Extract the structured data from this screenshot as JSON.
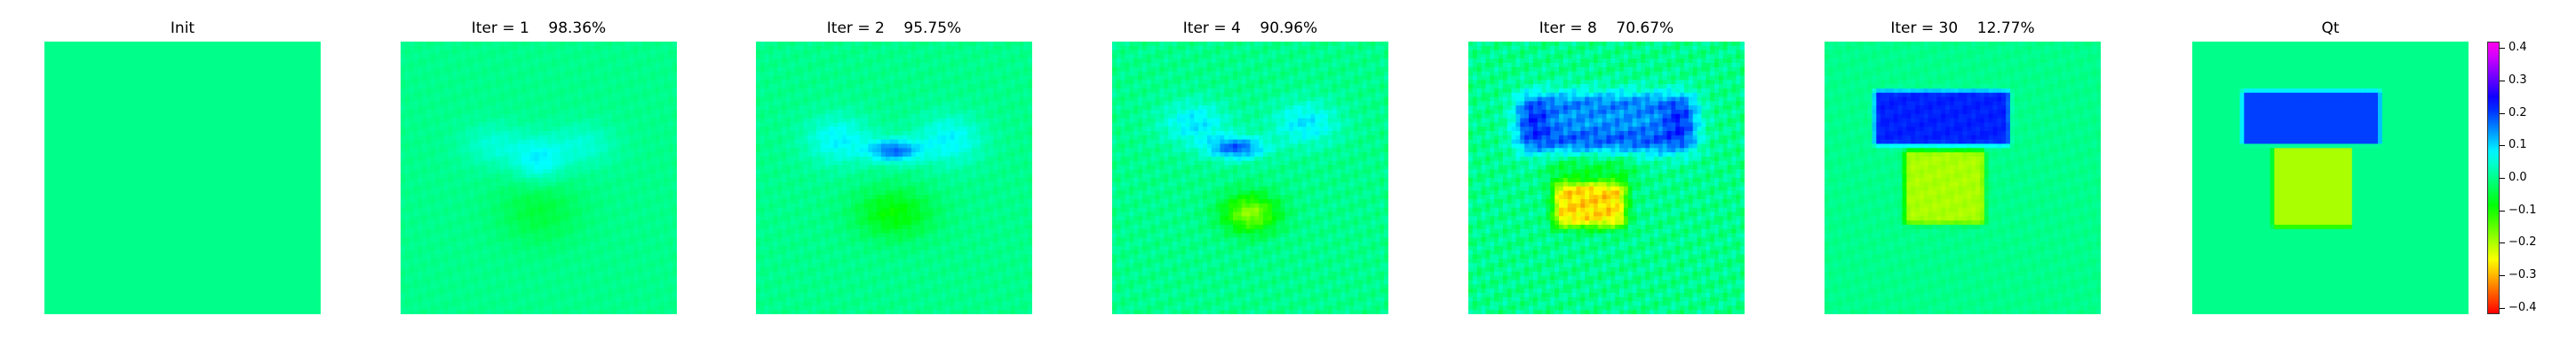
{
  "chart_data": {
    "type": "heatmap",
    "colormap": "gist_rainbow_r (red = -0.4, yellow ≈ -0.25, green ≈ -0.05, cyan = 0.1, blue = 0.2, magenta = 0.4)",
    "value_range": [
      -0.42,
      0.42
    ],
    "background_value": 0.0,
    "panels": [
      {
        "id": "init",
        "title": "Init",
        "description": "uniform field at 0.0"
      },
      {
        "id": "iter1",
        "title": "Iter = 1    98.36%",
        "description": "faint cyan V-shaped lobe in upper center (~0.07), faint green below"
      },
      {
        "id": "iter2",
        "title": "Iter = 2    95.75%",
        "description": "cyan wing lobes, blue spot (~0.2) upper center, green blob (~-0.08) below"
      },
      {
        "id": "iter4",
        "title": "Iter = 4    90.96%",
        "description": "blue band (~0.2) at ~0.38 height, yellow-green blob (~-0.18) below"
      },
      {
        "id": "iter8",
        "title": "Iter = 8    70.67%",
        "description": "blue ring around upper block, orange-yellow (~-0.28) lower block"
      },
      {
        "id": "iter30",
        "title": "Iter = 30    12.77%",
        "description": "near-uniform blue (~0.22) upper rectangle, yellow-green (~-0.2) lower rectangle"
      },
      {
        "id": "qt",
        "title": "Qt",
        "description": "ground truth: upper rectangle 0.2 (blue), lower rectangle -0.2 (yellow-green), background 0.0"
      }
    ],
    "colorbar_ticks": [
      "0.4",
      "0.3",
      "0.2",
      "0.1",
      "0.0",
      "−0.1",
      "−0.2",
      "−0.3",
      "−0.4"
    ],
    "colorbar_tick_values": [
      0.4,
      0.3,
      0.2,
      0.1,
      0.0,
      -0.1,
      -0.2,
      -0.3,
      -0.4
    ]
  }
}
